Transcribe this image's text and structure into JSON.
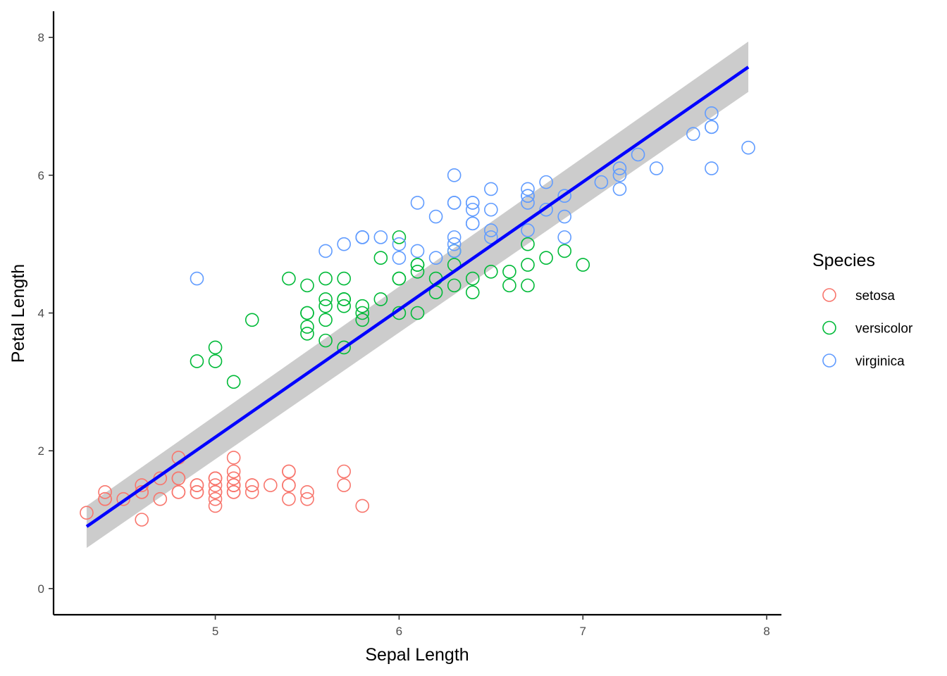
{
  "chart_data": {
    "type": "scatter",
    "title": "",
    "xlabel": "Sepal Length",
    "ylabel": "Petal Length",
    "xlim": [
      4.12,
      8.08
    ],
    "ylim": [
      -0.38,
      8.38
    ],
    "xticks": [
      "5",
      "6",
      "7",
      "8"
    ],
    "yticks": [
      "0",
      "2",
      "4",
      "6",
      "8"
    ],
    "legend": {
      "title": "Species",
      "position": "right"
    },
    "series": [
      {
        "name": "setosa",
        "color": "#F8766D",
        "points": [
          [
            5.1,
            1.4
          ],
          [
            4.9,
            1.4
          ],
          [
            4.7,
            1.3
          ],
          [
            4.6,
            1.5
          ],
          [
            5.0,
            1.4
          ],
          [
            5.4,
            1.7
          ],
          [
            4.6,
            1.4
          ],
          [
            5.0,
            1.5
          ],
          [
            4.4,
            1.4
          ],
          [
            4.9,
            1.5
          ],
          [
            5.4,
            1.5
          ],
          [
            4.8,
            1.6
          ],
          [
            4.8,
            1.4
          ],
          [
            4.3,
            1.1
          ],
          [
            5.8,
            1.2
          ],
          [
            5.7,
            1.5
          ],
          [
            5.4,
            1.3
          ],
          [
            5.1,
            1.4
          ],
          [
            5.7,
            1.7
          ],
          [
            5.1,
            1.5
          ],
          [
            5.4,
            1.7
          ],
          [
            5.1,
            1.5
          ],
          [
            4.6,
            1.0
          ],
          [
            5.1,
            1.7
          ],
          [
            4.8,
            1.9
          ],
          [
            5.0,
            1.6
          ],
          [
            5.0,
            1.6
          ],
          [
            5.2,
            1.5
          ],
          [
            5.2,
            1.4
          ],
          [
            4.7,
            1.6
          ],
          [
            4.8,
            1.6
          ],
          [
            5.4,
            1.5
          ],
          [
            5.2,
            1.5
          ],
          [
            5.5,
            1.4
          ],
          [
            4.9,
            1.5
          ],
          [
            5.0,
            1.2
          ],
          [
            5.5,
            1.3
          ],
          [
            4.9,
            1.4
          ],
          [
            4.4,
            1.3
          ],
          [
            5.1,
            1.5
          ],
          [
            5.0,
            1.3
          ],
          [
            4.5,
            1.3
          ],
          [
            4.4,
            1.3
          ],
          [
            5.0,
            1.6
          ],
          [
            5.1,
            1.9
          ],
          [
            4.8,
            1.4
          ],
          [
            5.1,
            1.6
          ],
          [
            4.6,
            1.4
          ],
          [
            5.3,
            1.5
          ],
          [
            5.0,
            1.4
          ]
        ]
      },
      {
        "name": "versicolor",
        "color": "#00BA38",
        "points": [
          [
            7.0,
            4.7
          ],
          [
            6.4,
            4.5
          ],
          [
            6.9,
            4.9
          ],
          [
            5.5,
            4.0
          ],
          [
            6.5,
            4.6
          ],
          [
            5.7,
            4.5
          ],
          [
            6.3,
            4.7
          ],
          [
            4.9,
            3.3
          ],
          [
            6.6,
            4.6
          ],
          [
            5.2,
            3.9
          ],
          [
            5.0,
            3.5
          ],
          [
            5.9,
            4.2
          ],
          [
            6.0,
            4.0
          ],
          [
            6.1,
            4.7
          ],
          [
            5.6,
            3.6
          ],
          [
            6.7,
            4.4
          ],
          [
            5.6,
            4.5
          ],
          [
            5.8,
            4.1
          ],
          [
            6.2,
            4.5
          ],
          [
            5.6,
            3.9
          ],
          [
            5.9,
            4.8
          ],
          [
            6.1,
            4.0
          ],
          [
            6.3,
            4.9
          ],
          [
            6.1,
            4.7
          ],
          [
            6.4,
            4.3
          ],
          [
            6.6,
            4.4
          ],
          [
            6.8,
            4.8
          ],
          [
            6.7,
            5.0
          ],
          [
            6.0,
            4.5
          ],
          [
            5.7,
            3.5
          ],
          [
            5.5,
            3.8
          ],
          [
            5.5,
            3.7
          ],
          [
            5.8,
            3.9
          ],
          [
            6.0,
            5.1
          ],
          [
            5.4,
            4.5
          ],
          [
            6.0,
            4.5
          ],
          [
            6.7,
            4.7
          ],
          [
            6.3,
            4.4
          ],
          [
            5.6,
            4.1
          ],
          [
            5.5,
            4.0
          ],
          [
            5.5,
            4.4
          ],
          [
            6.1,
            4.6
          ],
          [
            5.8,
            4.0
          ],
          [
            5.0,
            3.3
          ],
          [
            5.6,
            4.2
          ],
          [
            5.7,
            4.2
          ],
          [
            5.7,
            4.2
          ],
          [
            6.2,
            4.3
          ],
          [
            5.1,
            3.0
          ],
          [
            5.7,
            4.1
          ]
        ]
      },
      {
        "name": "virginica",
        "color": "#619CFF",
        "points": [
          [
            6.3,
            6.0
          ],
          [
            5.8,
            5.1
          ],
          [
            7.1,
            5.9
          ],
          [
            6.3,
            5.6
          ],
          [
            6.5,
            5.8
          ],
          [
            7.6,
            6.6
          ],
          [
            4.9,
            4.5
          ],
          [
            7.3,
            6.3
          ],
          [
            6.7,
            5.8
          ],
          [
            7.2,
            6.1
          ],
          [
            6.5,
            5.1
          ],
          [
            6.4,
            5.3
          ],
          [
            6.8,
            5.5
          ],
          [
            5.7,
            5.0
          ],
          [
            5.8,
            5.1
          ],
          [
            6.4,
            5.3
          ],
          [
            6.5,
            5.5
          ],
          [
            7.7,
            6.7
          ],
          [
            7.7,
            6.9
          ],
          [
            6.0,
            5.0
          ],
          [
            6.9,
            5.7
          ],
          [
            5.6,
            4.9
          ],
          [
            7.7,
            6.7
          ],
          [
            6.3,
            4.9
          ],
          [
            6.7,
            5.7
          ],
          [
            7.2,
            6.0
          ],
          [
            6.2,
            4.8
          ],
          [
            6.1,
            4.9
          ],
          [
            6.4,
            5.6
          ],
          [
            7.2,
            5.8
          ],
          [
            7.4,
            6.1
          ],
          [
            7.9,
            6.4
          ],
          [
            6.4,
            5.6
          ],
          [
            6.3,
            5.1
          ],
          [
            6.1,
            5.6
          ],
          [
            7.7,
            6.1
          ],
          [
            6.3,
            5.6
          ],
          [
            6.4,
            5.5
          ],
          [
            6.0,
            4.8
          ],
          [
            6.9,
            5.4
          ],
          [
            6.7,
            5.6
          ],
          [
            6.9,
            5.1
          ],
          [
            5.8,
            5.1
          ],
          [
            6.8,
            5.9
          ],
          [
            6.7,
            5.7
          ],
          [
            6.7,
            5.2
          ],
          [
            6.3,
            5.0
          ],
          [
            6.5,
            5.2
          ],
          [
            6.2,
            5.4
          ],
          [
            5.9,
            5.1
          ]
        ]
      }
    ],
    "fit": {
      "method": "lm",
      "color": "#0000FF",
      "band_color": "#CCCCCC",
      "x_range": [
        4.3,
        7.9
      ],
      "line": [
        0.9,
        7.57
      ],
      "lower": [
        0.59,
        7.21
      ],
      "upper": [
        1.2,
        7.94
      ]
    }
  }
}
